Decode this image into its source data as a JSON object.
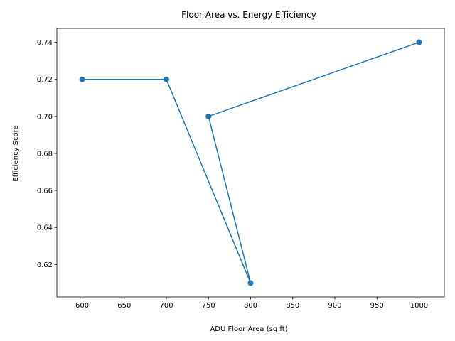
{
  "chart_data": {
    "type": "line",
    "title": "Floor Area vs. Energy Efficiency",
    "xlabel": "ADU Floor Area (sq ft)",
    "ylabel": "Efficiency Score",
    "xlim": [
      570,
      1030
    ],
    "ylim": [
      0.6025,
      0.7475
    ],
    "xticks": [
      600,
      650,
      700,
      750,
      800,
      850,
      900,
      950,
      1000
    ],
    "yticks": [
      0.62,
      0.64,
      0.66,
      0.68,
      0.7,
      0.72,
      0.74
    ],
    "xtick_labels": [
      "600",
      "650",
      "700",
      "750",
      "800",
      "850",
      "900",
      "950",
      "1000"
    ],
    "ytick_labels": [
      "0.62",
      "0.64",
      "0.66",
      "0.68",
      "0.70",
      "0.72",
      "0.74"
    ],
    "grid": false,
    "series": [
      {
        "color": "#1f77b4",
        "marker": "circle",
        "x": [
          600,
          700,
          800,
          750,
          1000
        ],
        "y": [
          0.72,
          0.72,
          0.61,
          0.7,
          0.74
        ]
      }
    ]
  }
}
